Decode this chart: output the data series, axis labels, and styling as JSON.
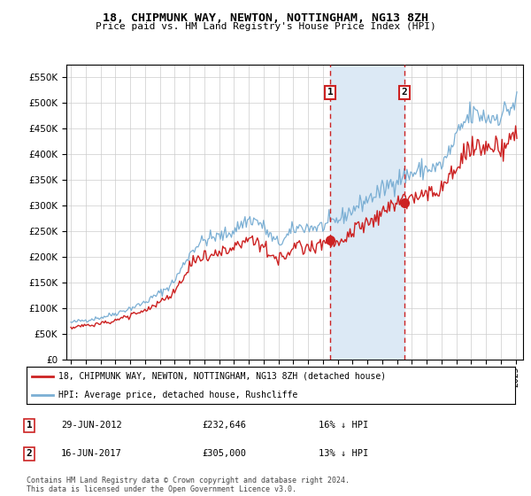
{
  "title": "18, CHIPMUNK WAY, NEWTON, NOTTINGHAM, NG13 8ZH",
  "subtitle": "Price paid vs. HM Land Registry's House Price Index (HPI)",
  "hpi_label": "HPI: Average price, detached house, Rushcliffe",
  "property_label": "18, CHIPMUNK WAY, NEWTON, NOTTINGHAM, NG13 8ZH (detached house)",
  "transaction1_date": "29-JUN-2012",
  "transaction1_price": 232646,
  "transaction1_hpi_text": "16% ↓ HPI",
  "transaction1_year": 2012.5,
  "transaction2_date": "16-JUN-2017",
  "transaction2_price": 305000,
  "transaction2_hpi_text": "13% ↓ HPI",
  "transaction2_year": 2017.5,
  "hpi_color": "#7bafd4",
  "property_color": "#cc2222",
  "shade_color": "#dce9f5",
  "dashed_color": "#cc2222",
  "ylim": [
    0,
    575000
  ],
  "yticks": [
    0,
    50000,
    100000,
    150000,
    200000,
    250000,
    300000,
    350000,
    400000,
    450000,
    500000,
    550000
  ],
  "xlim_start": 1994.7,
  "xlim_end": 2025.5,
  "xtick_years": [
    1995,
    1996,
    1997,
    1998,
    1999,
    2000,
    2001,
    2002,
    2003,
    2004,
    2005,
    2006,
    2007,
    2008,
    2009,
    2010,
    2011,
    2012,
    2013,
    2014,
    2015,
    2016,
    2017,
    2018,
    2019,
    2020,
    2021,
    2022,
    2023,
    2024,
    2025
  ],
  "footnote": "Contains HM Land Registry data © Crown copyright and database right 2024.\nThis data is licensed under the Open Government Licence v3.0."
}
